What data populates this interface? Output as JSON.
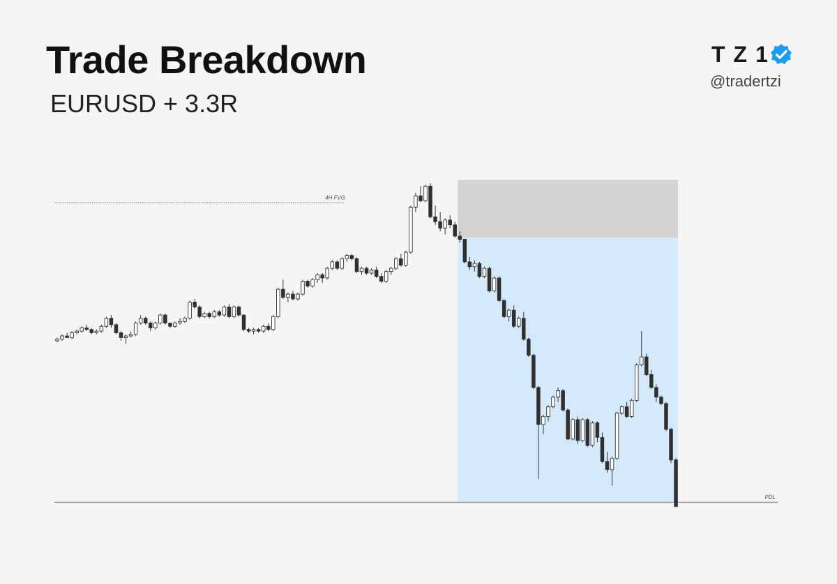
{
  "header": {
    "title": "Trade Breakdown",
    "subtitle": "EURUSD + 3.3R"
  },
  "brand": {
    "logo_text": "TZ1",
    "handle": "@tradertzi",
    "verified_icon": "verified-check-icon",
    "verified_color": "#1d9bf0"
  },
  "chart_data": {
    "type": "candlestick",
    "instrument": "EURUSD",
    "annotations": [
      {
        "label": "4H FVG",
        "kind": "dotted-level",
        "price": 93
      },
      {
        "label": "PDL",
        "kind": "solid-level",
        "price": 0
      }
    ],
    "trade": {
      "direction": "short",
      "entry": 82,
      "stop": 93.8,
      "target": 0,
      "start_index": 82,
      "end_index": 125,
      "result": "3.3R",
      "risk_color": "#d3d3d3",
      "reward_color": "#b3e1f9",
      "reward_light_color": "#d4eafa"
    },
    "colors": {
      "bull": "#ffffff",
      "bear": "#2f2f2f",
      "wick": "#333333"
    },
    "ohlc": [
      [
        50,
        51,
        49.5,
        50.5
      ],
      [
        50.5,
        52,
        50,
        51.5
      ],
      [
        51.5,
        52.5,
        51,
        51
      ],
      [
        51,
        53,
        50.5,
        52.5
      ],
      [
        52.5,
        53.5,
        52,
        53
      ],
      [
        53,
        54.5,
        52.5,
        54
      ],
      [
        54,
        55,
        53,
        53.5
      ],
      [
        53.5,
        54,
        52,
        52.5
      ],
      [
        52.5,
        53.5,
        52,
        53
      ],
      [
        53,
        55,
        52.5,
        54.5
      ],
      [
        54.5,
        57.5,
        54,
        57
      ],
      [
        57,
        58,
        54,
        55
      ],
      [
        55,
        55.5,
        52,
        52.5
      ],
      [
        52.5,
        53,
        50,
        51
      ],
      [
        51,
        52,
        49,
        51.5
      ],
      [
        51.5,
        53,
        51,
        52
      ],
      [
        52,
        56,
        51.5,
        55.5
      ],
      [
        55.5,
        58,
        55,
        57
      ],
      [
        57,
        57.5,
        55,
        55.5
      ],
      [
        55.5,
        56,
        53,
        54
      ],
      [
        54,
        56,
        53.5,
        55.5
      ],
      [
        55.5,
        58.5,
        55,
        58
      ],
      [
        58,
        58.5,
        55,
        55.5
      ],
      [
        55.5,
        55.5,
        54,
        54.5
      ],
      [
        54.5,
        56,
        54,
        55.5
      ],
      [
        55.5,
        57,
        55,
        56
      ],
      [
        56,
        57.5,
        55.5,
        57
      ],
      [
        57,
        62.5,
        56.5,
        62
      ],
      [
        62,
        63,
        60,
        60.5
      ],
      [
        60.5,
        61,
        57,
        57.5
      ],
      [
        57.5,
        59,
        57,
        58.5
      ],
      [
        58.5,
        59,
        57,
        57.5
      ],
      [
        57.5,
        59.5,
        57,
        59
      ],
      [
        59,
        59.5,
        57.5,
        58
      ],
      [
        58,
        61,
        57.5,
        60.5
      ],
      [
        60.5,
        61.5,
        57,
        57.5
      ],
      [
        57.5,
        61,
        57,
        60.5
      ],
      [
        60.5,
        61,
        57.5,
        58
      ],
      [
        58,
        58,
        53,
        53.5
      ],
      [
        53.5,
        54,
        52.5,
        53
      ],
      [
        53,
        54,
        52,
        53.5
      ],
      [
        53.5,
        54,
        52.5,
        53
      ],
      [
        53,
        55,
        52.5,
        54.5
      ],
      [
        54.5,
        55.5,
        53,
        53.5
      ],
      [
        53.5,
        58,
        53,
        57.5
      ],
      [
        57.5,
        66.5,
        57,
        66
      ],
      [
        66,
        69,
        63,
        63.5
      ],
      [
        63.5,
        65,
        62,
        64.5
      ],
      [
        64.5,
        65.5,
        62.5,
        63
      ],
      [
        63,
        65,
        62.5,
        64.5
      ],
      [
        64.5,
        69,
        64,
        68.5
      ],
      [
        68.5,
        69,
        66.5,
        67
      ],
      [
        67,
        69.5,
        66.5,
        69
      ],
      [
        69,
        71,
        68,
        70.5
      ],
      [
        70.5,
        71,
        68,
        69.5
      ],
      [
        69.5,
        73,
        69,
        72.5
      ],
      [
        72.5,
        75,
        72,
        74.5
      ],
      [
        74.5,
        75,
        72,
        72.5
      ],
      [
        72.5,
        76,
        72,
        75.5
      ],
      [
        75.5,
        77,
        74.5,
        76.5
      ],
      [
        76.5,
        77,
        75,
        75.5
      ],
      [
        75.5,
        76,
        71,
        71.5
      ],
      [
        71.5,
        73,
        70.5,
        72.5
      ],
      [
        72.5,
        73,
        70.5,
        71
      ],
      [
        71,
        72.5,
        70.5,
        72
      ],
      [
        72,
        73,
        69.5,
        70
      ],
      [
        70,
        71,
        68,
        68.5
      ],
      [
        68.5,
        72,
        68,
        71.5
      ],
      [
        71.5,
        73,
        70.5,
        72.5
      ],
      [
        72.5,
        76,
        72,
        75.5
      ],
      [
        75.5,
        77,
        73,
        73.5
      ],
      [
        73.5,
        78,
        73,
        77.5
      ],
      [
        77.5,
        92,
        77,
        91.5
      ],
      [
        91.5,
        96,
        90,
        95
      ],
      [
        95,
        98,
        93,
        93.5
      ],
      [
        93.5,
        98.5,
        93,
        98
      ],
      [
        98,
        99,
        88,
        88.5
      ],
      [
        88.5,
        92,
        86,
        87
      ],
      [
        87,
        90,
        84,
        85
      ],
      [
        85,
        88,
        83,
        87.5
      ],
      [
        87.5,
        89,
        85,
        86
      ],
      [
        86,
        87,
        82,
        82.5
      ],
      [
        82.5,
        84,
        80.5,
        81.5
      ]
    ]
  }
}
